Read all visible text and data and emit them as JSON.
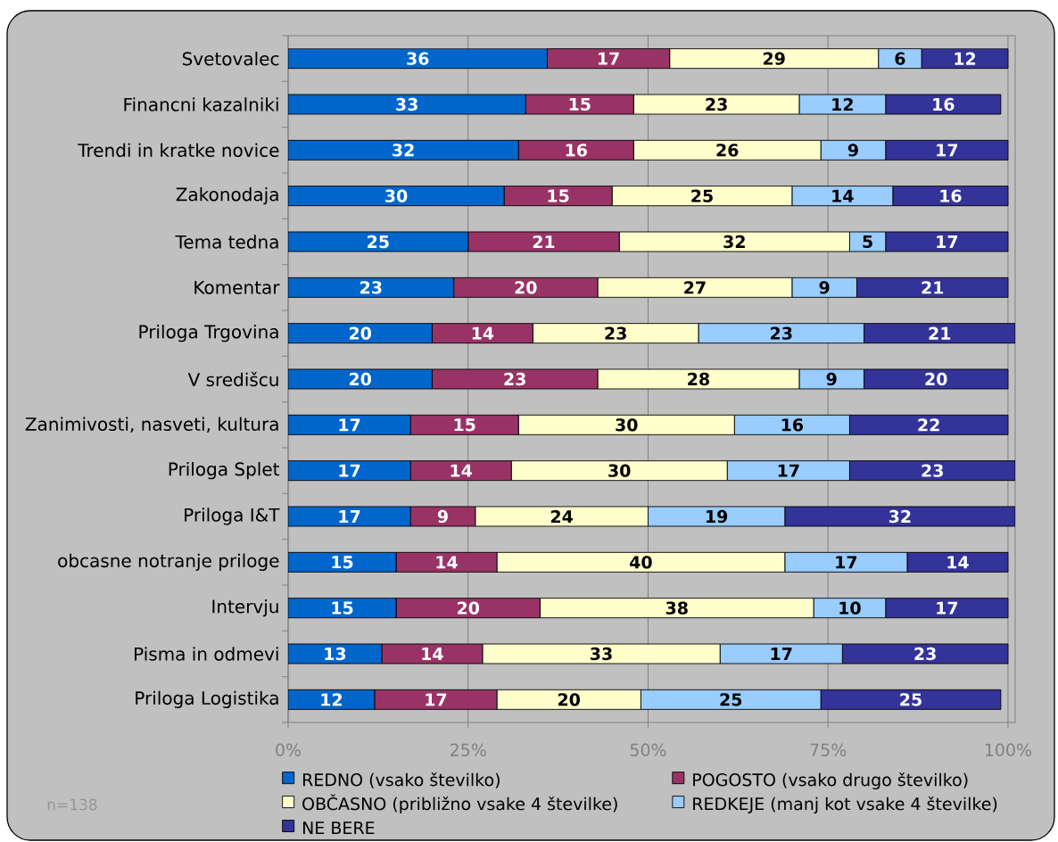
{
  "chart_data": {
    "type": "bar",
    "orientation": "horizontal",
    "stacked": true,
    "categories": [
      "Svetovalec",
      "Financni kazalniki",
      "Trendi in kratke novice",
      "Zakonodaja",
      "Tema tedna",
      "Komentar",
      "Priloga Trgovina",
      "V središcu",
      "Zanimivosti, nasveti, kultura",
      "Priloga Splet",
      "Priloga I&T",
      "obcasne notranje priloge",
      "Intervju",
      "Pisma in odmevi",
      "Priloga Logistika"
    ],
    "series": [
      {
        "name": "REDNO (vsako številko)",
        "color": "#0066cc",
        "values": [
          36,
          33,
          32,
          30,
          25,
          23,
          20,
          20,
          17,
          17,
          17,
          15,
          15,
          13,
          12
        ]
      },
      {
        "name": "POGOSTO (vsako drugo številko)",
        "color": "#993366",
        "values": [
          17,
          15,
          16,
          15,
          21,
          20,
          14,
          23,
          15,
          14,
          9,
          14,
          20,
          14,
          17
        ]
      },
      {
        "name": "OBČASNO (približno vsake 4 številke)",
        "color": "#ffffcc",
        "values": [
          29,
          23,
          26,
          25,
          32,
          27,
          23,
          28,
          30,
          30,
          24,
          40,
          38,
          33,
          20
        ]
      },
      {
        "name": "REDKEJE (manj kot vsake 4 številke)",
        "color": "#99ccff",
        "values": [
          6,
          12,
          9,
          14,
          5,
          9,
          23,
          9,
          16,
          17,
          19,
          17,
          10,
          17,
          25
        ]
      },
      {
        "name": "NE BERE",
        "color": "#333399",
        "values": [
          12,
          16,
          17,
          16,
          17,
          21,
          21,
          20,
          22,
          23,
          32,
          14,
          17,
          23,
          25
        ]
      }
    ],
    "xlim": [
      0,
      101
    ],
    "xticks": [
      {
        "value": 0,
        "label": "0%"
      },
      {
        "value": 25,
        "label": "25%"
      },
      {
        "value": 50,
        "label": "50%"
      },
      {
        "value": 75,
        "label": "75%"
      },
      {
        "value": 100,
        "label": "100%"
      }
    ],
    "grid": "x",
    "legend": "bottom",
    "data_labels": true,
    "annotations": [
      "n=138"
    ]
  }
}
